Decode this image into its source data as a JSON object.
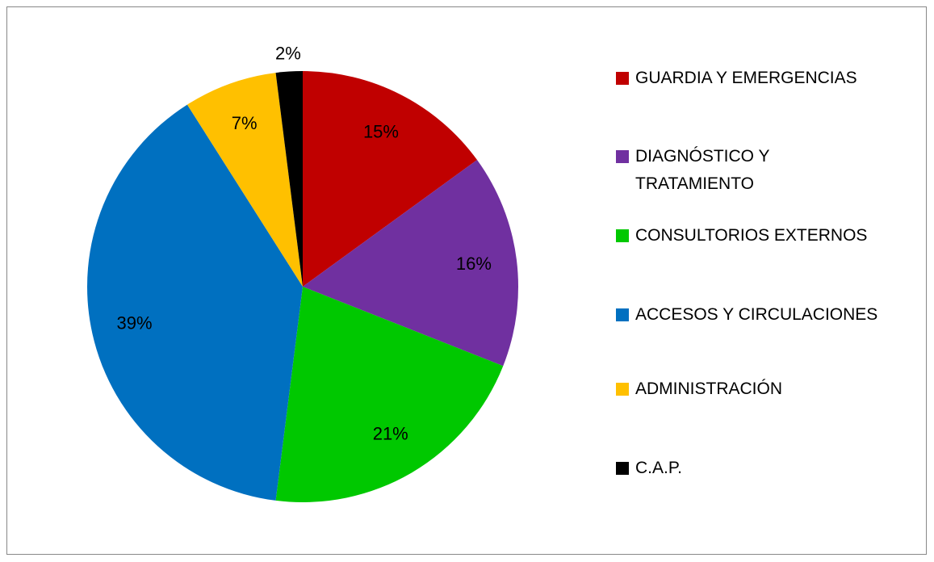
{
  "chart_data": {
    "type": "pie",
    "categories": [
      "GUARDIA Y EMERGENCIAS",
      "DIAGNÓSTICO Y TRATAMIENTO",
      "CONSULTORIOS EXTERNOS",
      "ACCESOS Y CIRCULACIONES",
      "ADMINISTRACIÓN",
      "C.A.P."
    ],
    "values": [
      15,
      16,
      21,
      39,
      7,
      2
    ],
    "value_labels": [
      "15%",
      "16%",
      "21%",
      "39%",
      "7%",
      "2%"
    ],
    "colors": [
      "#c00000",
      "#7030a0",
      "#00c800",
      "#0070c0",
      "#ffc000",
      "#000000"
    ],
    "legend": "right"
  }
}
